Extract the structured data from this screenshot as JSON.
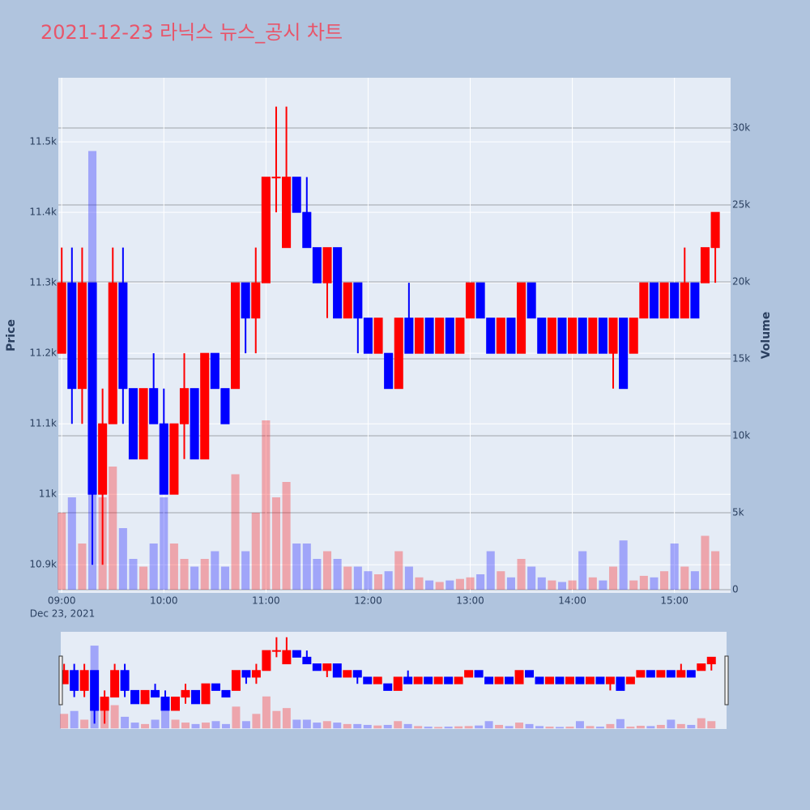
{
  "chart_data": {
    "type": "candlestick",
    "title": "2021-12-23 라닉스 뉴스_공시 차트",
    "y_axis_label": "Price",
    "y2_axis_label": "Volume",
    "x_date_label": "Dec 23, 2021",
    "up_color": "#ff0000",
    "down_color": "#0000ff",
    "x": [
      "09:00",
      "09:06",
      "09:12",
      "09:18",
      "09:24",
      "09:30",
      "09:36",
      "09:42",
      "09:48",
      "09:54",
      "10:00",
      "10:06",
      "10:12",
      "10:18",
      "10:24",
      "10:30",
      "10:36",
      "10:42",
      "10:48",
      "10:54",
      "11:00",
      "11:06",
      "11:12",
      "11:18",
      "11:24",
      "11:30",
      "11:36",
      "11:42",
      "11:48",
      "11:54",
      "12:00",
      "12:06",
      "12:12",
      "12:18",
      "12:24",
      "12:30",
      "12:36",
      "12:42",
      "12:48",
      "12:54",
      "13:00",
      "13:06",
      "13:12",
      "13:18",
      "13:24",
      "13:30",
      "13:36",
      "13:42",
      "13:48",
      "13:54",
      "14:00",
      "14:06",
      "14:12",
      "14:18",
      "14:24",
      "14:30",
      "14:36",
      "14:42",
      "14:48",
      "14:54",
      "15:00",
      "15:06",
      "15:12",
      "15:18",
      "15:24"
    ],
    "open": [
      11200,
      11300,
      11150,
      11300,
      11000,
      11100,
      11300,
      11150,
      11050,
      11150,
      11100,
      11000,
      11100,
      11150,
      11050,
      11200,
      11150,
      11150,
      11300,
      11250,
      11300,
      11450,
      11350,
      11450,
      11400,
      11350,
      11300,
      11350,
      11250,
      11300,
      11250,
      11200,
      11200,
      11150,
      11250,
      11200,
      11250,
      11200,
      11250,
      11200,
      11250,
      11300,
      11250,
      11200,
      11250,
      11200,
      11300,
      11250,
      11200,
      11250,
      11200,
      11250,
      11200,
      11250,
      11200,
      11250,
      11200,
      11250,
      11300,
      11250,
      11300,
      11250,
      11300,
      11300,
      11350
    ],
    "high": [
      11350,
      11350,
      11350,
      11300,
      11150,
      11350,
      11350,
      11150,
      11150,
      11200,
      11150,
      11100,
      11200,
      11150,
      11200,
      11200,
      11150,
      11300,
      11300,
      11350,
      11450,
      11550,
      11550,
      11450,
      11450,
      11350,
      11350,
      11350,
      11300,
      11300,
      11250,
      11250,
      11200,
      11250,
      11300,
      11250,
      11250,
      11250,
      11250,
      11250,
      11300,
      11300,
      11250,
      11250,
      11250,
      11300,
      11300,
      11250,
      11250,
      11250,
      11250,
      11250,
      11250,
      11250,
      11250,
      11250,
      11250,
      11300,
      11300,
      11300,
      11300,
      11350,
      11300,
      11350,
      11400
    ],
    "low": [
      11200,
      11100,
      11100,
      10900,
      10900,
      11100,
      11100,
      11050,
      11050,
      11100,
      11000,
      11000,
      11050,
      11050,
      11050,
      11150,
      11100,
      11150,
      11200,
      11200,
      11300,
      11400,
      11350,
      11400,
      11350,
      11300,
      11250,
      11250,
      11250,
      11200,
      11200,
      11200,
      11150,
      11150,
      11200,
      11200,
      11200,
      11200,
      11200,
      11200,
      11250,
      11250,
      11200,
      11200,
      11200,
      11200,
      11250,
      11200,
      11200,
      11200,
      11200,
      11200,
      11200,
      11200,
      11150,
      11150,
      11200,
      11250,
      11250,
      11250,
      11250,
      11250,
      11250,
      11300,
      11300
    ],
    "close": [
      11300,
      11150,
      11300,
      11000,
      11100,
      11300,
      11150,
      11050,
      11150,
      11100,
      11000,
      11100,
      11150,
      11050,
      11200,
      11150,
      11100,
      11300,
      11250,
      11300,
      11450,
      11450,
      11450,
      11400,
      11350,
      11300,
      11350,
      11250,
      11300,
      11250,
      11200,
      11250,
      11150,
      11250,
      11200,
      11250,
      11200,
      11250,
      11200,
      11250,
      11300,
      11250,
      11200,
      11250,
      11200,
      11300,
      11250,
      11200,
      11250,
      11200,
      11250,
      11200,
      11250,
      11200,
      11250,
      11150,
      11250,
      11300,
      11250,
      11300,
      11250,
      11300,
      11250,
      11350,
      11400
    ],
    "volume": [
      5000,
      6000,
      3000,
      28500,
      6000,
      8000,
      4000,
      2000,
      1500,
      3000,
      6000,
      3000,
      2000,
      1500,
      2000,
      2500,
      1500,
      7500,
      2500,
      5000,
      11000,
      6000,
      7000,
      3000,
      3000,
      2000,
      2500,
      2000,
      1500,
      1500,
      1200,
      1000,
      1200,
      2500,
      1500,
      800,
      600,
      500,
      600,
      700,
      800,
      1000,
      2500,
      1200,
      800,
      2000,
      1500,
      800,
      600,
      500,
      600,
      2500,
      800,
      600,
      1500,
      3200,
      600,
      900,
      800,
      1200,
      3000,
      1500,
      1200,
      3500,
      2500
    ],
    "xlim": [
      "08:58",
      "15:33"
    ],
    "xticks": [
      "09:00",
      "10:00",
      "11:00",
      "12:00",
      "13:00",
      "14:00",
      "15:00"
    ],
    "ylim": [
      10860,
      11591
    ],
    "yticks": [
      {
        "value": 10900,
        "label": "10.9k"
      },
      {
        "value": 11000,
        "label": "11k"
      },
      {
        "value": 11100,
        "label": "11.1k"
      },
      {
        "value": 11200,
        "label": "11.2k"
      },
      {
        "value": 11300,
        "label": "11.3k"
      },
      {
        "value": 11400,
        "label": "11.4k"
      },
      {
        "value": 11500,
        "label": "11.5k"
      }
    ],
    "y2lim": [
      -210,
      33260
    ],
    "y2ticks": [
      0,
      {
        "value": 5000,
        "label": "5k"
      },
      {
        "value": 10000,
        "label": "10k"
      },
      {
        "value": 15000,
        "label": "15k"
      },
      {
        "value": 20000,
        "label": "20k"
      },
      {
        "value": 25000,
        "label": "25k"
      },
      {
        "value": 30000,
        "label": "30k"
      }
    ],
    "grid": true,
    "rangeslider": true
  }
}
